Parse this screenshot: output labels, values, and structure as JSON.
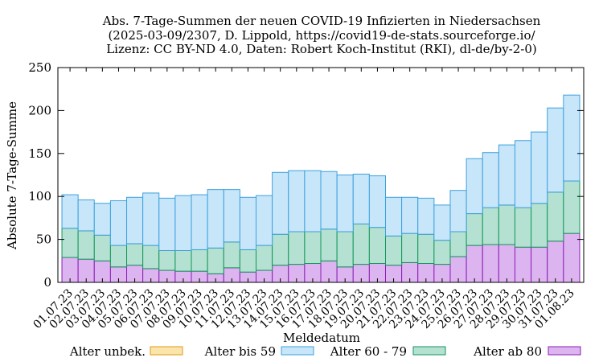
{
  "chart_data": {
    "type": "bar",
    "stacked": true,
    "title_lines": [
      "Abs. 7-Tage-Summen der neuen COVID-19 Infizierten in Niedersachsen",
      "(2025-03-09/2307, D. Lippold, https://covid19-de-stats.sourceforge.io/",
      "Lizenz: CC BY-ND 4.0, Daten: Robert Koch-Institut (RKI), dl-de/by-2-0)"
    ],
    "xlabel": "Meldedatum",
    "ylabel": "Absolute 7-Tage-Summe",
    "ylim": [
      0,
      250
    ],
    "yticks": [
      0,
      50,
      100,
      150,
      200,
      250
    ],
    "grid": false,
    "legend_position": "bottom",
    "categories": [
      "01.07.23",
      "02.07.23",
      "03.07.23",
      "04.07.23",
      "05.07.23",
      "06.07.23",
      "07.07.23",
      "08.07.23",
      "09.07.23",
      "10.07.23",
      "11.07.23",
      "12.07.23",
      "13.07.23",
      "14.07.23",
      "15.07.23",
      "16.07.23",
      "17.07.23",
      "18.07.23",
      "19.07.23",
      "20.07.23",
      "21.07.23",
      "22.07.23",
      "23.07.23",
      "24.07.23",
      "25.07.23",
      "26.07.23",
      "27.07.23",
      "28.07.23",
      "29.07.23",
      "30.07.23",
      "31.07.23",
      "01.08.23"
    ],
    "series": [
      {
        "name": "Alter ab 80",
        "fill": "#dcb4f0",
        "stroke": "#8c1eb4",
        "values": [
          29,
          27,
          25,
          18,
          20,
          16,
          14,
          13,
          13,
          10,
          17,
          12,
          14,
          20,
          21,
          22,
          25,
          18,
          21,
          22,
          20,
          23,
          22,
          21,
          30,
          43,
          44,
          44,
          41,
          41,
          48,
          57
        ]
      },
      {
        "name": "Alter 60 - 79",
        "fill": "#b4e1d2",
        "stroke": "#14965a",
        "values": [
          34,
          33,
          30,
          25,
          25,
          27,
          23,
          24,
          25,
          30,
          30,
          26,
          29,
          36,
          38,
          37,
          37,
          41,
          47,
          42,
          34,
          34,
          34,
          28,
          29,
          37,
          43,
          46,
          46,
          51,
          57,
          61
        ]
      },
      {
        "name": "Alter bis 59",
        "fill": "#c8e6fa",
        "stroke": "#3ca0dc",
        "values": [
          39,
          36,
          37,
          52,
          54,
          61,
          61,
          64,
          64,
          68,
          61,
          61,
          58,
          72,
          71,
          71,
          67,
          66,
          58,
          60,
          45,
          42,
          42,
          41,
          48,
          64,
          64,
          70,
          78,
          83,
          98,
          100
        ]
      },
      {
        "name": "Alter unbek.",
        "fill": "#fae6aa",
        "stroke": "#e69614",
        "values": [
          0,
          0,
          0,
          0,
          0,
          0,
          0,
          0,
          0,
          0,
          0,
          0,
          0,
          0,
          0,
          0,
          0,
          0,
          0,
          0,
          0,
          0,
          0,
          0,
          0,
          0,
          0,
          0,
          0,
          0,
          0,
          0
        ]
      }
    ],
    "legend_order": [
      "Alter unbek.",
      "Alter bis 59",
      "Alter 60 - 79",
      "Alter ab 80"
    ]
  }
}
